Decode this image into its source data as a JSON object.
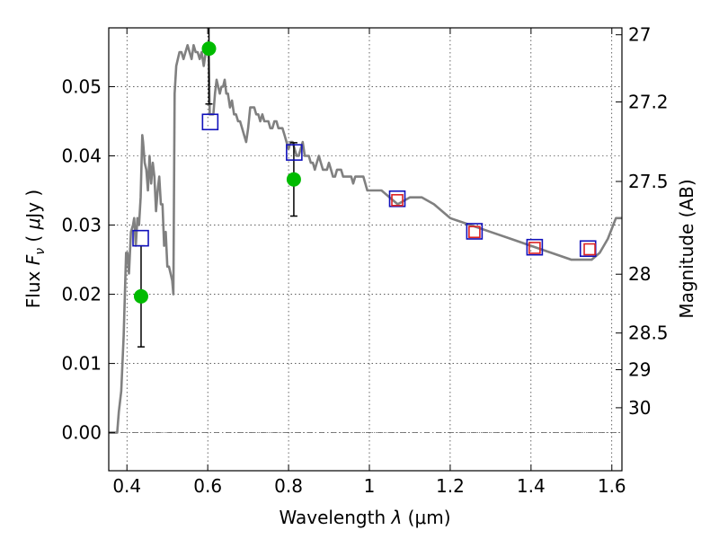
{
  "chart_data": {
    "type": "line",
    "xlabel": "Wavelength  λ (μm)",
    "ylabel": "Flux  F_ν  ( μJy )",
    "ylabel_parts": {
      "pre": "Flux  ",
      "F": "F",
      "nu": "ν",
      "mid": "  ( ",
      "mu": "μ",
      "post": "Jy )"
    },
    "xlabel_parts": {
      "pre": "Wavelength  ",
      "lam": "λ",
      "post": " (μm)"
    },
    "y2label": "Magnitude (AB)",
    "xlim": [
      0.355,
      1.625
    ],
    "ylim": [
      -0.0055,
      0.0585
    ],
    "grid": true,
    "x_ticks": [
      {
        "value": 0.4,
        "label": "0.4"
      },
      {
        "value": 0.6,
        "label": "0.6"
      },
      {
        "value": 0.8,
        "label": "0.8"
      },
      {
        "value": 1.0,
        "label": "1"
      },
      {
        "value": 1.2,
        "label": "1.2"
      },
      {
        "value": 1.4,
        "label": "1.4"
      },
      {
        "value": 1.6,
        "label": "1.6"
      }
    ],
    "y_ticks": [
      {
        "value": 0.0,
        "label": "0.00"
      },
      {
        "value": 0.01,
        "label": "0.01"
      },
      {
        "value": 0.02,
        "label": "0.02"
      },
      {
        "value": 0.03,
        "label": "0.03"
      },
      {
        "value": 0.04,
        "label": "0.04"
      },
      {
        "value": 0.05,
        "label": "0.05"
      }
    ],
    "y2_ticks": [
      {
        "label": "27",
        "flux": 0.0575
      },
      {
        "label": "27.2",
        "flux": 0.0478
      },
      {
        "label": "27.5",
        "flux": 0.0363
      },
      {
        "label": "28",
        "flux": 0.0229
      },
      {
        "label": "28.5",
        "flux": 0.0144
      },
      {
        "label": "29",
        "flux": 0.0091
      },
      {
        "label": "30",
        "flux": 0.0036
      }
    ],
    "series": [
      {
        "type": "line",
        "color": "#808080",
        "x": [
          0.355,
          0.376,
          0.38,
          0.386,
          0.392,
          0.398,
          0.401,
          0.405,
          0.41,
          0.415,
          0.418,
          0.422,
          0.426,
          0.43,
          0.434,
          0.438,
          0.44,
          0.444,
          0.448,
          0.452,
          0.456,
          0.46,
          0.464,
          0.468,
          0.472,
          0.476,
          0.48,
          0.484,
          0.488,
          0.492,
          0.496,
          0.5,
          0.504,
          0.508,
          0.512,
          0.515,
          0.518,
          0.522,
          0.526,
          0.53,
          0.535,
          0.54,
          0.545,
          0.55,
          0.555,
          0.56,
          0.565,
          0.57,
          0.575,
          0.58,
          0.585,
          0.59,
          0.595,
          0.598,
          0.602,
          0.605,
          0.61,
          0.614,
          0.618,
          0.622,
          0.626,
          0.63,
          0.634,
          0.638,
          0.642,
          0.646,
          0.65,
          0.655,
          0.66,
          0.665,
          0.67,
          0.675,
          0.68,
          0.685,
          0.69,
          0.695,
          0.7,
          0.705,
          0.71,
          0.715,
          0.72,
          0.725,
          0.73,
          0.735,
          0.74,
          0.745,
          0.75,
          0.755,
          0.76,
          0.765,
          0.77,
          0.775,
          0.78,
          0.785,
          0.79,
          0.795,
          0.8,
          0.805,
          0.81,
          0.815,
          0.82,
          0.825,
          0.83,
          0.835,
          0.84,
          0.845,
          0.85,
          0.855,
          0.86,
          0.865,
          0.87,
          0.875,
          0.88,
          0.885,
          0.89,
          0.895,
          0.9,
          0.905,
          0.91,
          0.915,
          0.92,
          0.925,
          0.93,
          0.935,
          0.94,
          0.945,
          0.95,
          0.955,
          0.96,
          0.965,
          0.97,
          0.975,
          0.98,
          0.985,
          0.99,
          0.995,
          1.0,
          1.01,
          1.02,
          1.03,
          1.05,
          1.07,
          1.1,
          1.13,
          1.16,
          1.2,
          1.25,
          1.3,
          1.35,
          1.4,
          1.45,
          1.5,
          1.53,
          1.55,
          1.57,
          1.59,
          1.61,
          1.625
        ],
        "y": [
          0.0,
          0.0,
          0.003,
          0.006,
          0.014,
          0.026,
          0.026,
          0.023,
          0.029,
          0.03,
          0.031,
          0.027,
          0.031,
          0.03,
          0.034,
          0.043,
          0.042,
          0.039,
          0.038,
          0.035,
          0.04,
          0.036,
          0.039,
          0.037,
          0.032,
          0.035,
          0.037,
          0.033,
          0.033,
          0.027,
          0.029,
          0.024,
          0.024,
          0.023,
          0.022,
          0.02,
          0.049,
          0.053,
          0.054,
          0.055,
          0.055,
          0.054,
          0.055,
          0.056,
          0.055,
          0.054,
          0.056,
          0.055,
          0.055,
          0.054,
          0.055,
          0.053,
          0.055,
          0.056,
          0.055,
          0.046,
          0.046,
          0.046,
          0.049,
          0.051,
          0.05,
          0.049,
          0.05,
          0.05,
          0.051,
          0.049,
          0.049,
          0.047,
          0.048,
          0.046,
          0.046,
          0.045,
          0.045,
          0.044,
          0.043,
          0.042,
          0.044,
          0.047,
          0.047,
          0.047,
          0.046,
          0.046,
          0.045,
          0.046,
          0.045,
          0.045,
          0.045,
          0.044,
          0.044,
          0.045,
          0.045,
          0.044,
          0.044,
          0.044,
          0.043,
          0.042,
          0.041,
          0.042,
          0.042,
          0.041,
          0.04,
          0.04,
          0.041,
          0.042,
          0.04,
          0.04,
          0.04,
          0.039,
          0.039,
          0.038,
          0.039,
          0.04,
          0.039,
          0.038,
          0.038,
          0.038,
          0.039,
          0.038,
          0.037,
          0.037,
          0.038,
          0.038,
          0.038,
          0.037,
          0.037,
          0.037,
          0.037,
          0.037,
          0.036,
          0.037,
          0.037,
          0.037,
          0.037,
          0.037,
          0.036,
          0.035,
          0.035,
          0.035,
          0.035,
          0.035,
          0.034,
          0.033,
          0.034,
          0.034,
          0.033,
          0.031,
          0.03,
          0.029,
          0.028,
          0.027,
          0.026,
          0.025,
          0.025,
          0.025,
          0.026,
          0.028,
          0.031,
          0.031
        ]
      },
      {
        "type": "points",
        "marker": "circle",
        "color": "#00bb00",
        "x": [
          0.435,
          0.603,
          0.813
        ],
        "y": [
          0.0197,
          0.0555,
          0.0366
        ],
        "yerr": [
          0.0073,
          0.008,
          0.0053
        ]
      },
      {
        "type": "points",
        "marker": "square",
        "color": "#1111bb",
        "x": [
          0.434,
          0.606,
          0.814,
          1.069,
          1.26,
          1.409,
          1.541
        ],
        "y": [
          0.0281,
          0.0449,
          0.0405,
          0.0338,
          0.0291,
          0.0268,
          0.0266
        ]
      },
      {
        "type": "points",
        "marker": "square",
        "color": "#dd2222",
        "x": [
          1.069,
          1.26,
          1.409,
          1.545
        ],
        "y": [
          0.0336,
          0.029,
          0.0267,
          0.0265
        ]
      }
    ]
  }
}
